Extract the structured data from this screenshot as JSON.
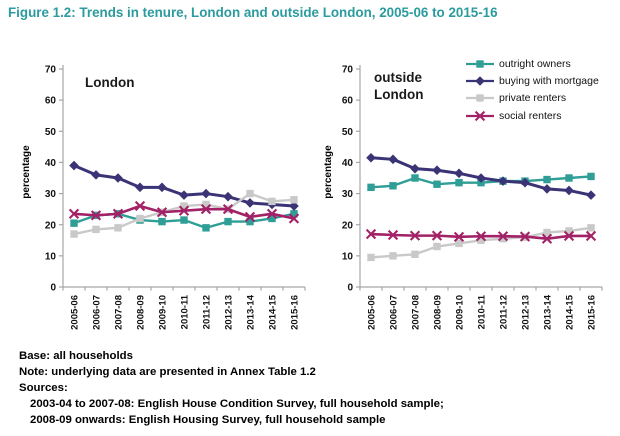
{
  "title": "Figure 1.2: Trends in tenure, London and outside London, 2005-06 to 2015-16",
  "colors": {
    "title_teal": "#2B9B9E",
    "outright_owners": "#2F9E96",
    "buying_with_mortgage": "#3A3375",
    "private_renters": "#C9C9C9",
    "social_renters": "#A22167",
    "axis": "#A6A6A6",
    "text": "#000000"
  },
  "chart_data": [
    {
      "type": "line",
      "title": "London",
      "label": "London",
      "xlabel": "",
      "ylabel": "percentage",
      "ylim": [
        0,
        70
      ],
      "yticks": [
        0,
        10,
        20,
        30,
        40,
        50,
        60,
        70
      ],
      "grid": false,
      "legend_visible": false,
      "categories": [
        "2005-06",
        "2006-07",
        "2007-08",
        "2008-09",
        "2009-10",
        "2010-11",
        "2011-12",
        "2012-13",
        "2013-14",
        "2014-15",
        "2015-16"
      ],
      "series": [
        {
          "name": "outright owners",
          "color": "#2F9E96",
          "marker": "square",
          "values": [
            20.5,
            23,
            23.5,
            21.5,
            21,
            21.5,
            19,
            21,
            21,
            22,
            23.5
          ]
        },
        {
          "name": "buying with mortgage",
          "color": "#3A3375",
          "marker": "diamond",
          "values": [
            39,
            36,
            35,
            32,
            32,
            29.5,
            30,
            29,
            27,
            26.5,
            26
          ]
        },
        {
          "name": "private renters",
          "color": "#C9C9C9",
          "marker": "square",
          "values": [
            17,
            18.5,
            19,
            22,
            24,
            26,
            26.5,
            25,
            30,
            27.5,
            28
          ]
        },
        {
          "name": "social renters",
          "color": "#A22167",
          "marker": "x",
          "values": [
            23.5,
            23,
            23.5,
            26,
            24,
            24.5,
            25,
            25,
            22.5,
            23.5,
            22
          ]
        }
      ]
    },
    {
      "type": "line",
      "title": "outside London",
      "label": "outside\nLondon",
      "xlabel": "",
      "ylabel": "percentage",
      "ylim": [
        0,
        70
      ],
      "yticks": [
        0,
        10,
        20,
        30,
        40,
        50,
        60,
        70
      ],
      "grid": false,
      "legend_visible": true,
      "legend_position": "top-right",
      "categories": [
        "2005-06",
        "2006-07",
        "2007-08",
        "2008-09",
        "2009-10",
        "2010-11",
        "2011-12",
        "2012-13",
        "2013-14",
        "2014-15",
        "2015-16"
      ],
      "series": [
        {
          "name": "outright owners",
          "color": "#2F9E96",
          "marker": "square",
          "values": [
            32,
            32.5,
            35,
            33,
            33.5,
            33.5,
            34,
            34,
            34.5,
            35,
            35.5
          ]
        },
        {
          "name": "buying with mortgage",
          "color": "#3A3375",
          "marker": "diamond",
          "values": [
            41.5,
            41,
            38,
            37.5,
            36.5,
            35,
            34,
            33.5,
            31.5,
            31,
            29.5
          ]
        },
        {
          "name": "private renters",
          "color": "#C9C9C9",
          "marker": "square",
          "values": [
            9.5,
            10,
            10.5,
            13,
            14,
            15,
            15.5,
            16,
            17.5,
            18,
            19
          ]
        },
        {
          "name": "social renters",
          "color": "#A22167",
          "marker": "x",
          "values": [
            17,
            16.7,
            16.5,
            16.5,
            16.1,
            16.3,
            16.3,
            16.2,
            15.5,
            16.4,
            16.4
          ]
        }
      ]
    }
  ],
  "footer": {
    "base": "Base: all households",
    "note": "Note: underlying data are presented in Annex Table 1.2",
    "sources_label": "Sources:",
    "source_line1": "2003-04 to 2007-08: English House Condition Survey, full household sample;",
    "source_line2": "2008-09 onwards: English Housing Survey, full household sample"
  }
}
